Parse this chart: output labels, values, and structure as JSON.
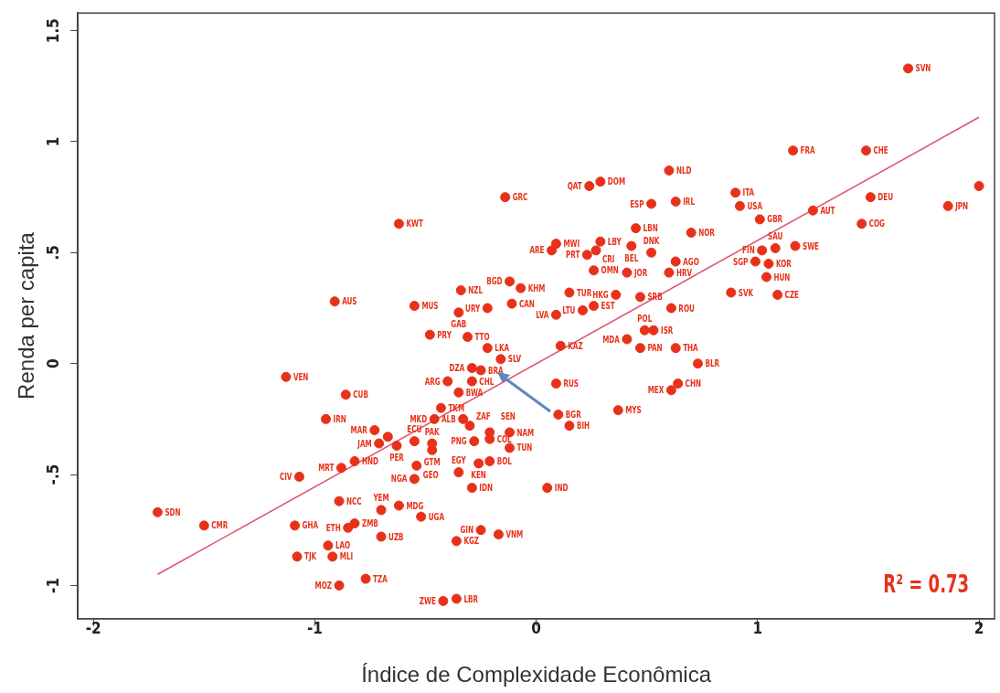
{
  "chart_data": {
    "type": "scatter",
    "xlabel": "Índice de Complexidade Econômica",
    "ylabel": "Renda per capita",
    "xlim": [
      -2.07,
      2.07
    ],
    "ylim": [
      -1.15,
      1.58
    ],
    "xticks": [
      -2,
      -1,
      0,
      1,
      2
    ],
    "yticks": [
      -1,
      {
        "value": -0.5,
        "label": "-.5"
      },
      0,
      {
        "value": 0.5,
        "label": ".5"
      },
      1,
      1.5
    ],
    "grid": false,
    "legend": false,
    "marker": "circle",
    "series": [
      {
        "color": "#e8311a",
        "x": [
          1.68,
          1.16,
          1.49,
          0.6,
          0.29,
          0.24,
          -0.14,
          0.9,
          0.92,
          0.52,
          0.63,
          1.51,
          1.25,
          1.86,
          2.0,
          1.01,
          1.47,
          -0.62,
          0.09,
          0.07,
          0.45,
          0.29,
          0.27,
          0.23,
          0.43,
          0.52,
          0.7,
          0.63,
          0.6,
          0.41,
          0.26,
          1.02,
          1.08,
          1.17,
          0.99,
          1.05,
          1.04,
          0.88,
          1.09,
          -0.12,
          -0.07,
          -0.34,
          0.15,
          0.36,
          0.47,
          -0.55,
          -0.11,
          -0.22,
          -0.35,
          0.26,
          0.21,
          0.09,
          0.61,
          0.49,
          0.53,
          0.41,
          -0.91,
          -0.48,
          -0.31,
          -0.22,
          0.11,
          0.47,
          0.63,
          -0.16,
          0.73,
          -0.29,
          -0.25,
          -1.13,
          -0.4,
          -0.29,
          0.09,
          0.64,
          0.61,
          -0.35,
          -0.86,
          -0.43,
          -0.46,
          -0.33,
          -0.3,
          -0.21,
          -0.21,
          -0.12,
          -0.12,
          -0.28,
          -0.26,
          -0.21,
          -0.95,
          -0.73,
          -0.67,
          -0.63,
          -0.55,
          -0.71,
          -0.47,
          -0.47,
          -0.82,
          -0.88,
          -1.07,
          -0.54,
          -0.55,
          -0.35,
          -0.29,
          0.05,
          0.37,
          0.1,
          0.15,
          -0.89,
          -0.7,
          -0.62,
          -0.52,
          -1.71,
          -1.5,
          -1.09,
          -0.85,
          -0.82,
          -0.7,
          -0.25,
          -0.17,
          -0.36,
          -0.94,
          -0.92,
          -1.08,
          -0.77,
          -0.89,
          -0.42,
          -0.36
        ],
        "values": [
          1.33,
          0.96,
          0.96,
          0.87,
          0.82,
          0.8,
          0.75,
          0.77,
          0.71,
          0.72,
          0.73,
          0.75,
          0.69,
          0.71,
          0.8,
          0.65,
          0.63,
          0.63,
          0.54,
          0.51,
          0.61,
          0.55,
          0.51,
          0.49,
          0.53,
          0.5,
          0.59,
          0.46,
          0.41,
          0.41,
          0.42,
          0.51,
          0.52,
          0.53,
          0.46,
          0.45,
          0.39,
          0.32,
          0.31,
          0.37,
          0.34,
          0.33,
          0.32,
          0.31,
          0.3,
          0.26,
          0.27,
          0.25,
          0.23,
          0.26,
          0.24,
          0.22,
          0.25,
          0.15,
          0.15,
          0.11,
          0.28,
          0.13,
          0.12,
          0.07,
          0.08,
          0.07,
          0.07,
          0.02,
          0.0,
          -0.02,
          -0.03,
          -0.06,
          -0.08,
          -0.08,
          -0.09,
          -0.09,
          -0.12,
          -0.13,
          -0.14,
          -0.2,
          -0.25,
          -0.25,
          -0.28,
          -0.31,
          -0.34,
          -0.31,
          -0.38,
          -0.35,
          -0.45,
          -0.44,
          -0.25,
          -0.3,
          -0.33,
          -0.37,
          -0.35,
          -0.36,
          -0.36,
          -0.39,
          -0.44,
          -0.47,
          -0.51,
          -0.46,
          -0.52,
          -0.49,
          -0.56,
          -0.56,
          -0.21,
          -0.23,
          -0.28,
          -0.62,
          -0.66,
          -0.64,
          -0.69,
          -0.67,
          -0.73,
          -0.73,
          -0.74,
          -0.72,
          -0.78,
          -0.75,
          -0.77,
          -0.8,
          -0.82,
          -0.87,
          -0.87,
          -0.97,
          -1.0,
          -1.07,
          -1.06
        ]
      },
      {
        "type": "line",
        "color": "#e0506a",
        "marker": "none",
        "x": [
          -1.71,
          2.0
        ],
        "values": [
          -0.95,
          1.11
        ]
      }
    ],
    "annotations": [
      {
        "text": "SVN",
        "x": 1.68,
        "y": 1.33
      },
      {
        "text": "FRA",
        "x": 1.16,
        "y": 0.96
      },
      {
        "text": "CHE",
        "x": 1.49,
        "y": 0.96
      },
      {
        "text": "NLD",
        "x": 0.6,
        "y": 0.87
      },
      {
        "text": "DOM",
        "x": 0.29,
        "y": 0.82
      },
      {
        "text": "QAT",
        "x": 0.24,
        "y": 0.8
      },
      {
        "text": "GRC",
        "x": -0.14,
        "y": 0.75
      },
      {
        "text": "ITA",
        "x": 0.9,
        "y": 0.77
      },
      {
        "text": "USA",
        "x": 0.92,
        "y": 0.71
      },
      {
        "text": "ESP",
        "x": 0.52,
        "y": 0.72
      },
      {
        "text": "IRL",
        "x": 0.63,
        "y": 0.73
      },
      {
        "text": "DEU",
        "x": 1.51,
        "y": 0.75
      },
      {
        "text": "AUT",
        "x": 1.25,
        "y": 0.69
      },
      {
        "text": "JPN",
        "x": 1.86,
        "y": 0.71
      },
      {
        "text": "GBR",
        "x": 1.01,
        "y": 0.65
      },
      {
        "text": "COG",
        "x": 1.47,
        "y": 0.63
      },
      {
        "text": "KWT",
        "x": -0.62,
        "y": 0.63
      },
      {
        "text": "MWI",
        "x": 0.09,
        "y": 0.54
      },
      {
        "text": "ARE",
        "x": 0.07,
        "y": 0.51
      },
      {
        "text": "LBN",
        "x": 0.45,
        "y": 0.61
      },
      {
        "text": "LBY",
        "x": 0.29,
        "y": 0.55
      },
      {
        "text": "CRI",
        "x": 0.27,
        "y": 0.51
      },
      {
        "text": "PRT",
        "x": 0.23,
        "y": 0.49
      },
      {
        "text": "BEL",
        "x": 0.43,
        "y": 0.53
      },
      {
        "text": "DNK",
        "x": 0.52,
        "y": 0.5
      },
      {
        "text": "NOR",
        "x": 0.7,
        "y": 0.59
      },
      {
        "text": "AGO",
        "x": 0.63,
        "y": 0.46
      },
      {
        "text": "HRV",
        "x": 0.6,
        "y": 0.41
      },
      {
        "text": "JOR",
        "x": 0.41,
        "y": 0.41
      },
      {
        "text": "OMN",
        "x": 0.26,
        "y": 0.42
      },
      {
        "text": "FIN",
        "x": 1.02,
        "y": 0.51
      },
      {
        "text": "SAU",
        "x": 1.08,
        "y": 0.52
      },
      {
        "text": "SWE",
        "x": 1.17,
        "y": 0.53
      },
      {
        "text": "SGP",
        "x": 0.99,
        "y": 0.46
      },
      {
        "text": "KOR",
        "x": 1.05,
        "y": 0.45
      },
      {
        "text": "HUN",
        "x": 1.04,
        "y": 0.39
      },
      {
        "text": "SVK",
        "x": 0.88,
        "y": 0.32
      },
      {
        "text": "CZE",
        "x": 1.09,
        "y": 0.31
      },
      {
        "text": "BGD",
        "x": -0.12,
        "y": 0.37
      },
      {
        "text": "KHM",
        "x": -0.07,
        "y": 0.34
      },
      {
        "text": "NZL",
        "x": -0.34,
        "y": 0.33
      },
      {
        "text": "TUR",
        "x": 0.15,
        "y": 0.32
      },
      {
        "text": "HKG",
        "x": 0.36,
        "y": 0.31
      },
      {
        "text": "SRB",
        "x": 0.47,
        "y": 0.3
      },
      {
        "text": "MUS",
        "x": -0.55,
        "y": 0.26
      },
      {
        "text": "CAN",
        "x": -0.11,
        "y": 0.27
      },
      {
        "text": "URY",
        "x": -0.22,
        "y": 0.25
      },
      {
        "text": "GAB",
        "x": -0.35,
        "y": 0.23
      },
      {
        "text": "EST",
        "x": 0.26,
        "y": 0.26
      },
      {
        "text": "LTU",
        "x": 0.21,
        "y": 0.24
      },
      {
        "text": "LVA",
        "x": 0.09,
        "y": 0.22
      },
      {
        "text": "ROU",
        "x": 0.61,
        "y": 0.25
      },
      {
        "text": "POL",
        "x": 0.49,
        "y": 0.15
      },
      {
        "text": "ISR",
        "x": 0.53,
        "y": 0.15
      },
      {
        "text": "MDA",
        "x": 0.41,
        "y": 0.11
      },
      {
        "text": "AUS",
        "x": -0.91,
        "y": 0.28
      },
      {
        "text": "PRY",
        "x": -0.48,
        "y": 0.13
      },
      {
        "text": "TTO",
        "x": -0.31,
        "y": 0.12
      },
      {
        "text": "LKA",
        "x": -0.22,
        "y": 0.07
      },
      {
        "text": "KAZ",
        "x": 0.11,
        "y": 0.08
      },
      {
        "text": "PAN",
        "x": 0.47,
        "y": 0.07
      },
      {
        "text": "THA",
        "x": 0.63,
        "y": 0.07
      },
      {
        "text": "SLV",
        "x": -0.16,
        "y": 0.02
      },
      {
        "text": "BLR",
        "x": 0.73,
        "y": 0.0
      },
      {
        "text": "DZA",
        "x": -0.29,
        "y": -0.02
      },
      {
        "text": "BRA",
        "x": -0.25,
        "y": -0.03
      },
      {
        "text": "VEN",
        "x": -1.13,
        "y": -0.06
      },
      {
        "text": "ARG",
        "x": -0.4,
        "y": -0.08
      },
      {
        "text": "CHL",
        "x": -0.29,
        "y": -0.08
      },
      {
        "text": "RUS",
        "x": 0.09,
        "y": -0.09
      },
      {
        "text": "CHN",
        "x": 0.64,
        "y": -0.09
      },
      {
        "text": "MEX",
        "x": 0.61,
        "y": -0.12
      },
      {
        "text": "BWA",
        "x": -0.35,
        "y": -0.13
      },
      {
        "text": "CUB",
        "x": -0.86,
        "y": -0.14
      },
      {
        "text": "TKM",
        "x": -0.43,
        "y": -0.2
      },
      {
        "text": "MKD",
        "x": -0.46,
        "y": -0.25
      },
      {
        "text": "ALB",
        "x": -0.33,
        "y": -0.25
      },
      {
        "text": "ZAF",
        "x": -0.3,
        "y": -0.28
      },
      {
        "text": "SEN",
        "x": -0.21,
        "y": -0.31
      },
      {
        "text": "COL",
        "x": -0.21,
        "y": -0.34
      },
      {
        "text": "NAM",
        "x": -0.12,
        "y": -0.31
      },
      {
        "text": "TUN",
        "x": -0.12,
        "y": -0.38
      },
      {
        "text": "PNG",
        "x": -0.28,
        "y": -0.35
      },
      {
        "text": "KEN",
        "x": -0.26,
        "y": -0.45
      },
      {
        "text": "BOL",
        "x": -0.21,
        "y": -0.44
      },
      {
        "text": "IRN",
        "x": -0.95,
        "y": -0.25
      },
      {
        "text": "MAR",
        "x": -0.73,
        "y": -0.3
      },
      {
        "text": "PER",
        "x": -0.63,
        "y": -0.37
      },
      {
        "text": "ECU",
        "x": -0.55,
        "y": -0.35
      },
      {
        "text": "JAM",
        "x": -0.71,
        "y": -0.36
      },
      {
        "text": "PAK",
        "x": -0.47,
        "y": -0.36
      },
      {
        "text": "GTM",
        "x": -0.47,
        "y": -0.39
      },
      {
        "text": "HND",
        "x": -0.82,
        "y": -0.44
      },
      {
        "text": "MRT",
        "x": -0.88,
        "y": -0.47
      },
      {
        "text": "CIV",
        "x": -1.07,
        "y": -0.51
      },
      {
        "text": "GEO",
        "x": -0.54,
        "y": -0.46
      },
      {
        "text": "NGA",
        "x": -0.55,
        "y": -0.52
      },
      {
        "text": "EGY",
        "x": -0.35,
        "y": -0.49
      },
      {
        "text": "IDN",
        "x": -0.29,
        "y": -0.56
      },
      {
        "text": "IND",
        "x": 0.05,
        "y": -0.56
      },
      {
        "text": "MYS",
        "x": 0.37,
        "y": -0.21
      },
      {
        "text": "BGR",
        "x": 0.1,
        "y": -0.23
      },
      {
        "text": "BIH",
        "x": 0.15,
        "y": -0.28
      },
      {
        "text": "NCC",
        "x": -0.89,
        "y": -0.62
      },
      {
        "text": "YEM",
        "x": -0.7,
        "y": -0.66
      },
      {
        "text": "MDG",
        "x": -0.62,
        "y": -0.64
      },
      {
        "text": "UGA",
        "x": -0.52,
        "y": -0.69
      },
      {
        "text": "SDN",
        "x": -1.71,
        "y": -0.67
      },
      {
        "text": "CMR",
        "x": -1.5,
        "y": -0.73
      },
      {
        "text": "GHA",
        "x": -1.09,
        "y": -0.73
      },
      {
        "text": "ETH",
        "x": -0.85,
        "y": -0.74
      },
      {
        "text": "ZMB",
        "x": -0.82,
        "y": -0.72
      },
      {
        "text": "UZB",
        "x": -0.7,
        "y": -0.78
      },
      {
        "text": "GIN",
        "x": -0.25,
        "y": -0.75
      },
      {
        "text": "VNM",
        "x": -0.17,
        "y": -0.77
      },
      {
        "text": "KGZ",
        "x": -0.36,
        "y": -0.8
      },
      {
        "text": "LAO",
        "x": -0.94,
        "y": -0.82
      },
      {
        "text": "MLI",
        "x": -0.92,
        "y": -0.87
      },
      {
        "text": "TJK",
        "x": -1.08,
        "y": -0.87
      },
      {
        "text": "TZA",
        "x": -0.77,
        "y": -0.97
      },
      {
        "text": "MOZ",
        "x": -0.89,
        "y": -1.0
      },
      {
        "text": "ZWE",
        "x": -0.42,
        "y": -1.07
      },
      {
        "text": "LBR",
        "x": -0.36,
        "y": -1.06
      },
      "R² = 0.73"
    ]
  }
}
